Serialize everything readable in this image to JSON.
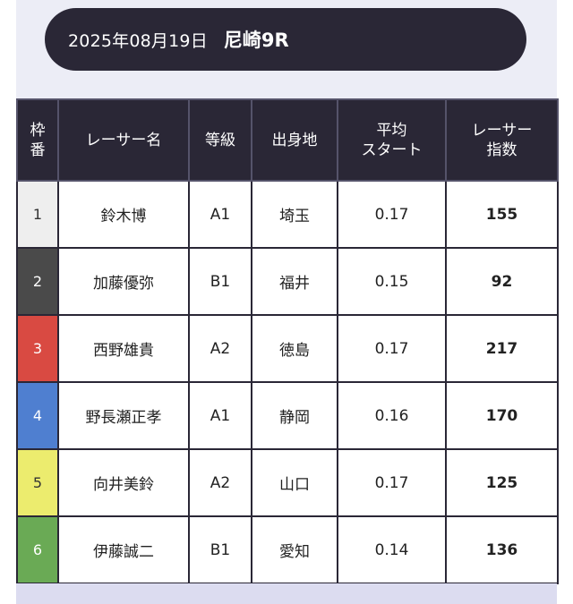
{
  "header": {
    "date": "2025年08月19日",
    "race": "尼崎9R"
  },
  "table": {
    "headers": {
      "frame": [
        "枠",
        "番"
      ],
      "name": "レーサー名",
      "grade": "等級",
      "hometown": "出身地",
      "avg_start": [
        "平均",
        "スタート"
      ],
      "index": [
        "レーサー",
        "指数"
      ]
    },
    "rows": [
      {
        "frame": "1",
        "frame_color": "#eeeeee",
        "name": "鈴木博",
        "grade": "A1",
        "hometown": "埼玉",
        "avg_start": "0.17",
        "index": "155"
      },
      {
        "frame": "2",
        "frame_color": "#4a4a4a",
        "name": "加藤優弥",
        "grade": "B1",
        "hometown": "福井",
        "avg_start": "0.15",
        "index": "92"
      },
      {
        "frame": "3",
        "frame_color": "#d94a42",
        "name": "西野雄貴",
        "grade": "A2",
        "hometown": "徳島",
        "avg_start": "0.17",
        "index": "217"
      },
      {
        "frame": "4",
        "frame_color": "#4f7fd0",
        "name": "野長瀬正孝",
        "grade": "A1",
        "hometown": "静岡",
        "avg_start": "0.16",
        "index": "170"
      },
      {
        "frame": "5",
        "frame_color": "#ecec6e",
        "name": "向井美鈴",
        "grade": "A2",
        "hometown": "山口",
        "avg_start": "0.17",
        "index": "125"
      },
      {
        "frame": "6",
        "frame_color": "#6aaa55",
        "name": "伊藤誠二",
        "grade": "B1",
        "hometown": "愛知",
        "avg_start": "0.14",
        "index": "136"
      }
    ]
  }
}
